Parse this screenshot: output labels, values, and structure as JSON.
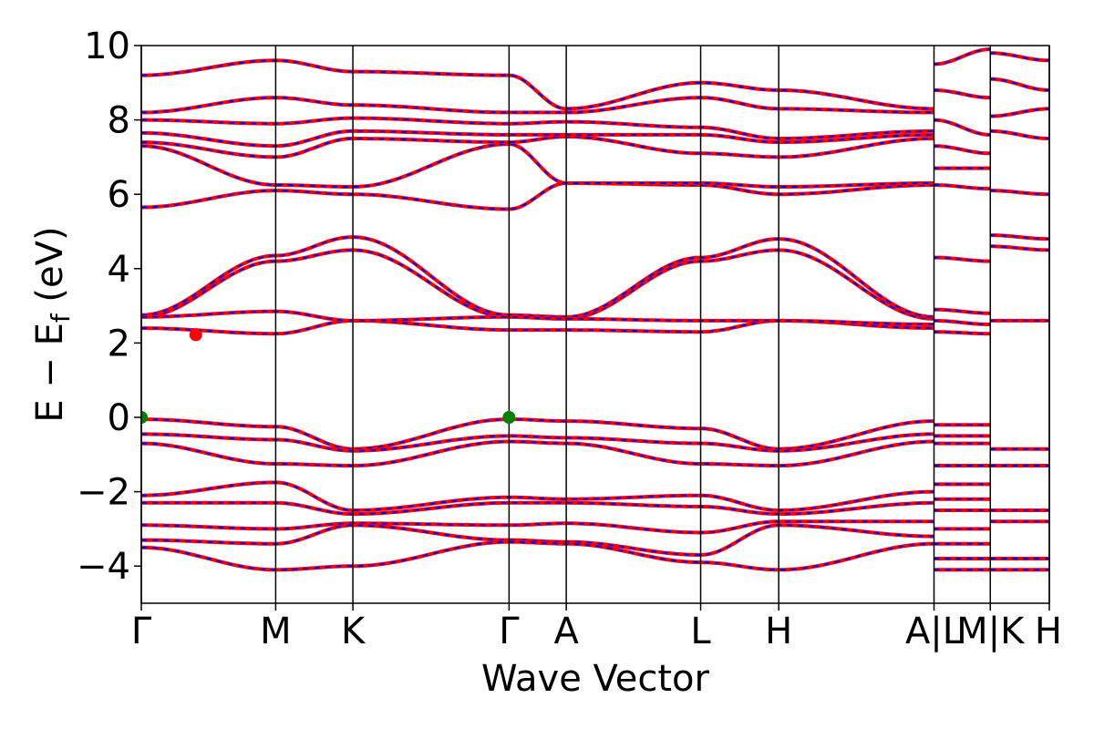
{
  "chart_data": {
    "type": "line",
    "xlabel": "Wave Vector",
    "ylabel": {
      "main": "E − E",
      "sub": "f",
      "tail": " (eV)"
    },
    "ylim": [
      -5,
      10
    ],
    "yticks": [
      -4,
      -2,
      0,
      2,
      4,
      6,
      8,
      10
    ],
    "ytick_labels": [
      "−4",
      "−2",
      "0",
      "2",
      "4",
      "6",
      "8",
      "10"
    ],
    "xlim": [
      0,
      1
    ],
    "high_symmetry_points": [
      {
        "label": "Γ",
        "x": 0.0
      },
      {
        "label": "M",
        "x": 0.148
      },
      {
        "label": "K",
        "x": 0.233
      },
      {
        "label": "Γ",
        "x": 0.405
      },
      {
        "label": "A",
        "x": 0.468
      },
      {
        "label": "L",
        "x": 0.616
      },
      {
        "label": "H",
        "x": 0.702
      },
      {
        "label": "A",
        "x": 0.873
      },
      {
        "label": "|",
        "x": 0.873
      },
      {
        "label": "L",
        "x": 0.873
      },
      {
        "label": "M",
        "x": 0.873
      },
      {
        "label": "|",
        "x": 0.935
      },
      {
        "label": "K",
        "x": 0.935
      },
      {
        "label": "H",
        "x": 1.0
      }
    ],
    "x_tick_texts": [
      {
        "text": "Γ",
        "x": 0.0
      },
      {
        "text": "M",
        "x": 0.148
      },
      {
        "text": "K",
        "x": 0.233
      },
      {
        "text": "Γ",
        "x": 0.405
      },
      {
        "text": "A",
        "x": 0.468
      },
      {
        "text": "L",
        "x": 0.616
      },
      {
        "text": "H",
        "x": 0.702
      },
      {
        "text": "A|L",
        "x": 0.873
      },
      {
        "text": "M|K",
        "x": 0.935
      },
      {
        "text": "H",
        "x": 1.0
      }
    ],
    "series": [
      {
        "color": "#ff0000",
        "style": "solid"
      },
      {
        "color": "#0000ff",
        "style": "dashed"
      }
    ],
    "bands": [
      {
        "x": [
          0,
          0.148,
          0.233,
          0.405,
          0.468,
          0.616,
          0.702,
          0.873
        ],
        "y": [
          -0.05,
          -0.25,
          -0.85,
          -0.05,
          -0.1,
          -0.3,
          -0.85,
          -0.1
        ]
      },
      {
        "x": [
          0,
          0.148,
          0.233,
          0.405,
          0.468,
          0.616,
          0.702,
          0.873
        ],
        "y": [
          -0.45,
          -0.6,
          -0.9,
          -0.5,
          -0.55,
          -0.7,
          -0.9,
          -0.45
        ]
      },
      {
        "x": [
          0,
          0.148,
          0.233,
          0.405,
          0.468,
          0.616,
          0.702,
          0.873
        ],
        "y": [
          -0.7,
          -1.25,
          -1.3,
          -0.65,
          -0.7,
          -1.25,
          -1.3,
          -0.65
        ]
      },
      {
        "x": [
          0,
          0.148,
          0.233,
          0.405,
          0.468,
          0.616,
          0.702,
          0.873
        ],
        "y": [
          -2.1,
          -1.75,
          -2.5,
          -2.15,
          -2.2,
          -2.1,
          -2.5,
          -2.0
        ]
      },
      {
        "x": [
          0,
          0.148,
          0.233,
          0.405,
          0.468,
          0.616,
          0.702,
          0.873
        ],
        "y": [
          -2.3,
          -2.3,
          -2.6,
          -2.3,
          -2.3,
          -2.4,
          -2.6,
          -2.3
        ]
      },
      {
        "x": [
          0,
          0.148,
          0.233,
          0.405,
          0.468,
          0.616,
          0.702,
          0.873
        ],
        "y": [
          -2.9,
          -3.0,
          -2.85,
          -2.9,
          -2.85,
          -3.1,
          -2.8,
          -2.8
        ]
      },
      {
        "x": [
          0,
          0.148,
          0.233,
          0.405,
          0.468,
          0.616,
          0.702,
          0.873
        ],
        "y": [
          -3.3,
          -3.4,
          -2.9,
          -3.3,
          -3.35,
          -3.7,
          -2.9,
          -3.2
        ]
      },
      {
        "x": [
          0,
          0.148,
          0.233,
          0.405,
          0.468,
          0.616,
          0.702,
          0.873
        ],
        "y": [
          -3.5,
          -4.1,
          -4.0,
          -3.35,
          -3.4,
          -3.9,
          -4.1,
          -3.4
        ]
      },
      {
        "x": [
          0,
          0.148,
          0.233,
          0.405,
          0.468,
          0.616,
          0.702,
          0.873
        ],
        "y": [
          2.4,
          2.25,
          2.6,
          2.35,
          2.35,
          2.3,
          2.6,
          2.4
        ]
      },
      {
        "x": [
          0,
          0.148,
          0.233,
          0.405,
          0.468,
          0.616,
          0.702,
          0.873
        ],
        "y": [
          2.7,
          4.2,
          4.5,
          2.7,
          2.65,
          4.2,
          4.5,
          2.65
        ]
      },
      {
        "x": [
          0,
          0.148,
          0.233,
          0.405,
          0.468,
          0.616,
          0.702,
          0.873
        ],
        "y": [
          2.75,
          4.35,
          4.85,
          2.75,
          2.7,
          4.3,
          4.8,
          2.7
        ]
      },
      {
        "x": [
          0,
          0.148,
          0.233,
          0.405,
          0.468,
          0.616,
          0.702,
          0.873
        ],
        "y": [
          2.7,
          2.85,
          2.6,
          2.7,
          2.65,
          2.6,
          2.6,
          2.5
        ]
      },
      {
        "x": [
          0,
          0.148,
          0.233,
          0.405,
          0.468,
          0.616,
          0.702,
          0.873
        ],
        "y": [
          5.65,
          6.1,
          6.0,
          5.6,
          6.3,
          6.25,
          6.0,
          6.25
        ]
      },
      {
        "x": [
          0,
          0.148,
          0.233,
          0.405,
          0.468,
          0.616,
          0.702,
          0.873
        ],
        "y": [
          7.3,
          6.25,
          6.2,
          7.35,
          6.3,
          6.3,
          6.2,
          6.3
        ]
      },
      {
        "x": [
          0,
          0.148,
          0.233,
          0.405,
          0.468,
          0.616,
          0.702,
          0.873
        ],
        "y": [
          7.4,
          7.0,
          7.5,
          7.4,
          7.55,
          7.1,
          7.0,
          7.5
        ]
      },
      {
        "x": [
          0,
          0.148,
          0.233,
          0.405,
          0.468,
          0.616,
          0.702,
          0.873
        ],
        "y": [
          7.65,
          7.3,
          7.7,
          7.6,
          7.6,
          7.6,
          7.4,
          7.6
        ]
      },
      {
        "x": [
          0,
          0.148,
          0.233,
          0.405,
          0.468,
          0.616,
          0.702,
          0.873
        ],
        "y": [
          8.0,
          7.9,
          8.05,
          7.9,
          7.95,
          7.8,
          7.5,
          7.7
        ]
      },
      {
        "x": [
          0,
          0.148,
          0.233,
          0.405,
          0.468,
          0.616,
          0.702,
          0.873
        ],
        "y": [
          8.2,
          8.6,
          8.4,
          8.2,
          8.2,
          8.6,
          8.3,
          8.2
        ]
      },
      {
        "x": [
          0,
          0.148,
          0.233,
          0.405,
          0.468,
          0.616,
          0.702,
          0.873
        ],
        "y": [
          9.2,
          9.6,
          9.3,
          9.2,
          8.3,
          9.0,
          8.8,
          8.3
        ]
      },
      {
        "x": [
          0.873,
          0.935
        ],
        "y": [
          9.5,
          9.9
        ]
      },
      {
        "x": [
          0.873,
          0.935
        ],
        "y": [
          8.8,
          8.6
        ]
      },
      {
        "x": [
          0.873,
          0.935
        ],
        "y": [
          8.0,
          7.6
        ]
      },
      {
        "x": [
          0.873,
          0.935
        ],
        "y": [
          7.3,
          7.1
        ]
      },
      {
        "x": [
          0.873,
          0.935
        ],
        "y": [
          6.7,
          6.7
        ]
      },
      {
        "x": [
          0.873,
          0.935
        ],
        "y": [
          6.25,
          6.15
        ]
      },
      {
        "x": [
          0.873,
          0.935
        ],
        "y": [
          4.3,
          4.2
        ]
      },
      {
        "x": [
          0.873,
          0.935
        ],
        "y": [
          2.9,
          2.8
        ]
      },
      {
        "x": [
          0.873,
          0.935
        ],
        "y": [
          2.6,
          2.5
        ]
      },
      {
        "x": [
          0.873,
          0.935
        ],
        "y": [
          2.3,
          2.25
        ]
      },
      {
        "x": [
          0.873,
          0.935
        ],
        "y": [
          -0.2,
          -0.2
        ]
      },
      {
        "x": [
          0.873,
          0.935
        ],
        "y": [
          -0.5,
          -0.5
        ]
      },
      {
        "x": [
          0.873,
          0.935
        ],
        "y": [
          -0.7,
          -0.7
        ]
      },
      {
        "x": [
          0.873,
          0.935
        ],
        "y": [
          -1.3,
          -1.3
        ]
      },
      {
        "x": [
          0.873,
          0.935
        ],
        "y": [
          -1.8,
          -1.8
        ]
      },
      {
        "x": [
          0.873,
          0.935
        ],
        "y": [
          -2.2,
          -2.2
        ]
      },
      {
        "x": [
          0.873,
          0.935
        ],
        "y": [
          -2.5,
          -2.5
        ]
      },
      {
        "x": [
          0.873,
          0.935
        ],
        "y": [
          -3.0,
          -3.0
        ]
      },
      {
        "x": [
          0.873,
          0.935
        ],
        "y": [
          -3.4,
          -3.4
        ]
      },
      {
        "x": [
          0.873,
          0.935
        ],
        "y": [
          -3.8,
          -3.8
        ]
      },
      {
        "x": [
          0.873,
          0.935
        ],
        "y": [
          -4.1,
          -4.1
        ]
      },
      {
        "x": [
          0.935,
          1.0
        ],
        "y": [
          9.8,
          9.6
        ]
      },
      {
        "x": [
          0.935,
          1.0
        ],
        "y": [
          9.1,
          8.8
        ]
      },
      {
        "x": [
          0.935,
          1.0
        ],
        "y": [
          8.1,
          8.3
        ]
      },
      {
        "x": [
          0.935,
          1.0
        ],
        "y": [
          7.7,
          7.5
        ]
      },
      {
        "x": [
          0.935,
          1.0
        ],
        "y": [
          6.1,
          6.0
        ]
      },
      {
        "x": [
          0.935,
          1.0
        ],
        "y": [
          4.9,
          4.8
        ]
      },
      {
        "x": [
          0.935,
          1.0
        ],
        "y": [
          4.6,
          4.5
        ]
      },
      {
        "x": [
          0.935,
          1.0
        ],
        "y": [
          2.6,
          2.6
        ]
      },
      {
        "x": [
          0.935,
          1.0
        ],
        "y": [
          -0.85,
          -0.85
        ]
      },
      {
        "x": [
          0.935,
          1.0
        ],
        "y": [
          -1.3,
          -1.3
        ]
      },
      {
        "x": [
          0.935,
          1.0
        ],
        "y": [
          -2.5,
          -2.5
        ]
      },
      {
        "x": [
          0.935,
          1.0
        ],
        "y": [
          -2.8,
          -2.8
        ]
      },
      {
        "x": [
          0.935,
          1.0
        ],
        "y": [
          -3.8,
          -3.8
        ]
      },
      {
        "x": [
          0.935,
          1.0
        ],
        "y": [
          -4.1,
          -4.1
        ]
      }
    ],
    "markers": [
      {
        "x": 0.0,
        "y": 0.0,
        "color": "#008000"
      },
      {
        "x": 0.405,
        "y": 0.0,
        "color": "#008000"
      },
      {
        "x": 0.06,
        "y": 2.22,
        "color": "#ff0000"
      }
    ]
  }
}
